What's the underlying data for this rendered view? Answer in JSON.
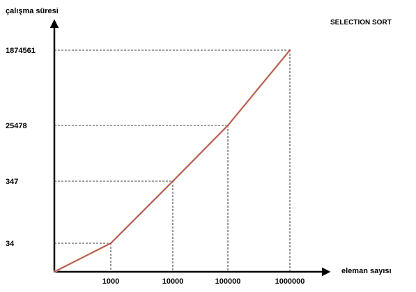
{
  "chart_data": {
    "type": "line",
    "title": "SELECTION SORT",
    "xlabel": "eleman sayısı",
    "ylabel": "çalışma süresi",
    "x_tick_labels": [
      "1000",
      "10000",
      "100000",
      "1000000"
    ],
    "y_tick_labels": [
      "34",
      "347",
      "25478",
      "1874561"
    ],
    "series": [
      {
        "x": [
          "0",
          "1000",
          "10000",
          "100000",
          "1000000"
        ],
        "values": [
          0,
          34,
          347,
          25478,
          1874561
        ]
      }
    ],
    "colors": {
      "line_outer": "#e8c26a",
      "line_inner": "#a13a8f",
      "axis": "#000000"
    },
    "grid": false,
    "guide_lines": "dashed"
  }
}
